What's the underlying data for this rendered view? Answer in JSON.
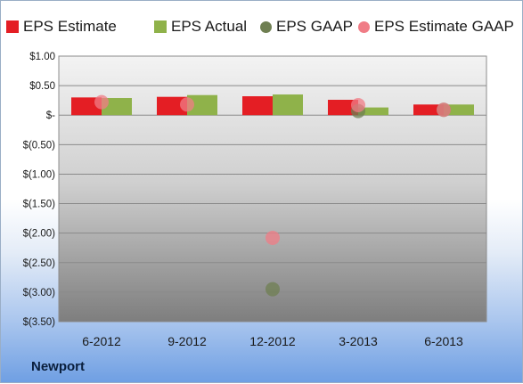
{
  "chart_data": {
    "type": "bar",
    "categories": [
      "6-2012",
      "9-2012",
      "12-2012",
      "3-2013",
      "6-2013"
    ],
    "series": [
      {
        "name": "EPS Estimate",
        "kind": "bar",
        "color": "#e41e24",
        "values": [
          0.3,
          0.31,
          0.32,
          0.26,
          0.18
        ]
      },
      {
        "name": "EPS Actual",
        "kind": "bar",
        "color": "#8fb24a",
        "values": [
          0.29,
          0.34,
          0.35,
          0.13,
          0.18
        ]
      },
      {
        "name": "EPS GAAP",
        "kind": "scatter",
        "color": "#6f7f52",
        "values": [
          null,
          null,
          -2.95,
          0.07,
          0.09
        ]
      },
      {
        "name": "EPS Estimate GAAP",
        "kind": "scatter",
        "color": "#f07c86",
        "values": [
          0.22,
          0.18,
          -2.08,
          0.17,
          0.09
        ]
      }
    ],
    "ylim": [
      -3.5,
      1.0
    ],
    "yticks": [
      1.0,
      0.5,
      0.0,
      -0.5,
      -1.0,
      -1.5,
      -2.0,
      -2.5,
      -3.0,
      -3.5
    ],
    "ytick_labels": [
      "$1.00",
      "$0.50",
      "$-",
      "$(0.50)",
      "$(1.00)",
      "$(1.50)",
      "$(2.00)",
      "$(2.50)",
      "$(3.00)",
      "$(3.50)"
    ],
    "grid": true,
    "legend_position": "top"
  },
  "company_label": "Newport",
  "colors": {
    "plot_bg_top": "#f3f3f3",
    "plot_bg_bottom": "#7e7e7e",
    "gridline": "#8a8a8a"
  }
}
